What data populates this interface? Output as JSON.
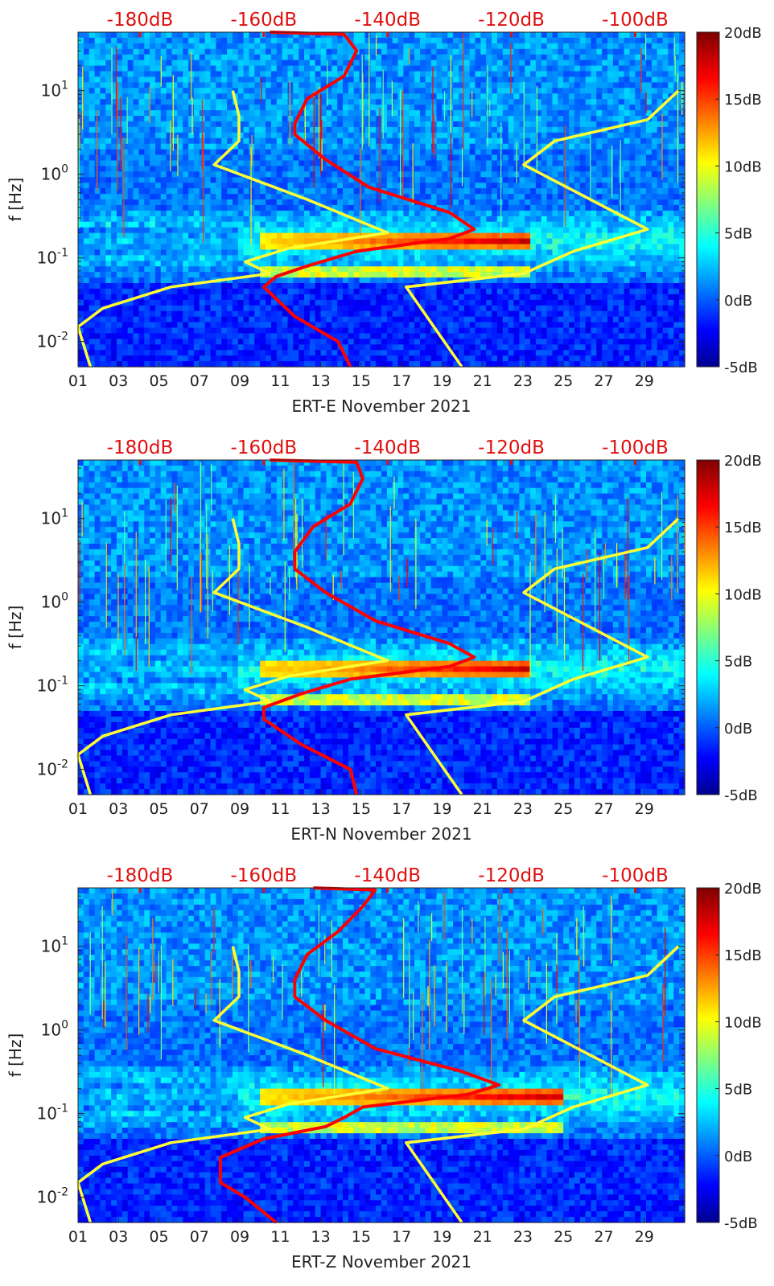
{
  "figure": {
    "panel_count": 3,
    "colormap": "jet",
    "colors": {
      "model_line": "#ff0000",
      "bound_lines": "#ffff33",
      "top_label": "#e01010",
      "axis_text": "#222222"
    },
    "top_axis_labels": [
      "-180dB",
      "-160dB",
      "-140dB",
      "-120dB",
      "-100dB"
    ]
  },
  "chart_data": [
    {
      "type": "heatmap",
      "title": "",
      "xlabel": "ERT-E November 2021",
      "ylabel": "f [Hz]",
      "x_ticks": [
        "01",
        "03",
        "05",
        "07",
        "09",
        "11",
        "13",
        "15",
        "17",
        "19",
        "21",
        "23",
        "25",
        "27",
        "29"
      ],
      "x_range": [
        1,
        31
      ],
      "y_ticks": [
        "10^-2",
        "10^-1",
        "10^0",
        "10^1"
      ],
      "y_range_hz": [
        0.005,
        50
      ],
      "top_x_labels": [
        "-180dB",
        "-160dB",
        "-140dB",
        "-120dB",
        "-100dB"
      ],
      "top_x_range_db": [
        -190,
        -92
      ],
      "colorbar": {
        "ticks": [
          "20dB",
          "15dB",
          "10dB",
          "5dB",
          "0dB",
          "-5dB"
        ],
        "range_db": [
          -5,
          20
        ]
      },
      "microseism_peak": {
        "secondary_hz": 0.16,
        "primary_hz": 0.07,
        "start_day": 10,
        "end_day": 23.5,
        "max_db": 18
      },
      "red_curve": [
        [
          -159,
          50
        ],
        [
          -147,
          47
        ],
        [
          -145,
          30
        ],
        [
          -147,
          15
        ],
        [
          -153,
          8
        ],
        [
          -155,
          4
        ],
        [
          -155,
          3
        ],
        [
          -150,
          1.5
        ],
        [
          -143,
          0.7
        ],
        [
          -130,
          0.35
        ],
        [
          -126,
          0.22
        ],
        [
          -130,
          0.17
        ],
        [
          -145,
          0.12
        ],
        [
          -153,
          0.08
        ],
        [
          -158,
          0.06
        ],
        [
          -160,
          0.045
        ],
        [
          -155,
          0.02
        ],
        [
          -148,
          0.01
        ],
        [
          -146,
          0.005
        ]
      ],
      "low_noise_model": [
        [
          -165,
          10
        ],
        [
          -164,
          5
        ],
        [
          -164,
          2.5
        ],
        [
          -168,
          1.3
        ],
        [
          -153,
          0.5
        ],
        [
          -140,
          0.2
        ],
        [
          -156,
          0.13
        ],
        [
          -161,
          0.1
        ],
        [
          -163,
          0.09
        ],
        [
          -159,
          0.065
        ],
        [
          -175,
          0.045
        ],
        [
          -186,
          0.025
        ],
        [
          -190,
          0.015
        ],
        [
          -188,
          0.005
        ]
      ],
      "high_noise_model": [
        [
          -93,
          10
        ],
        [
          -98,
          4.5
        ],
        [
          -113,
          2.5
        ],
        [
          -118,
          1.3
        ],
        [
          -98,
          0.22
        ],
        [
          -110,
          0.12
        ],
        [
          -118,
          0.065
        ],
        [
          -137,
          0.045
        ],
        [
          -128,
          0.005
        ]
      ]
    },
    {
      "type": "heatmap",
      "title": "",
      "xlabel": "ERT-N November 2021",
      "ylabel": "f [Hz]",
      "x_ticks": [
        "01",
        "03",
        "05",
        "07",
        "09",
        "11",
        "13",
        "15",
        "17",
        "19",
        "21",
        "23",
        "25",
        "27",
        "29"
      ],
      "x_range": [
        1,
        31
      ],
      "y_ticks": [
        "10^-2",
        "10^-1",
        "10^0",
        "10^1"
      ],
      "y_range_hz": [
        0.005,
        50
      ],
      "top_x_labels": [
        "-180dB",
        "-160dB",
        "-140dB",
        "-120dB",
        "-100dB"
      ],
      "top_x_range_db": [
        -190,
        -92
      ],
      "colorbar": {
        "ticks": [
          "20dB",
          "15dB",
          "10dB",
          "5dB",
          "0dB",
          "-5dB"
        ],
        "range_db": [
          -5,
          20
        ]
      },
      "microseism_peak": {
        "secondary_hz": 0.16,
        "primary_hz": 0.07,
        "start_day": 10,
        "end_day": 23.5,
        "max_db": 17
      },
      "red_curve": [
        [
          -159,
          50
        ],
        [
          -145,
          47
        ],
        [
          -144,
          30
        ],
        [
          -146,
          15
        ],
        [
          -152,
          8
        ],
        [
          -155,
          4
        ],
        [
          -155,
          2.5
        ],
        [
          -150,
          1.3
        ],
        [
          -142,
          0.6
        ],
        [
          -130,
          0.32
        ],
        [
          -126,
          0.22
        ],
        [
          -130,
          0.17
        ],
        [
          -146,
          0.12
        ],
        [
          -154,
          0.08
        ],
        [
          -160,
          0.055
        ],
        [
          -160,
          0.04
        ],
        [
          -154,
          0.02
        ],
        [
          -146,
          0.01
        ],
        [
          -145,
          0.005
        ]
      ],
      "low_noise_model": [
        [
          -165,
          10
        ],
        [
          -164,
          5
        ],
        [
          -164,
          2.5
        ],
        [
          -168,
          1.3
        ],
        [
          -153,
          0.5
        ],
        [
          -140,
          0.2
        ],
        [
          -156,
          0.13
        ],
        [
          -161,
          0.1
        ],
        [
          -163,
          0.09
        ],
        [
          -159,
          0.065
        ],
        [
          -175,
          0.045
        ],
        [
          -186,
          0.025
        ],
        [
          -190,
          0.015
        ],
        [
          -188,
          0.005
        ]
      ],
      "high_noise_model": [
        [
          -93,
          10
        ],
        [
          -98,
          4.5
        ],
        [
          -113,
          2.5
        ],
        [
          -118,
          1.3
        ],
        [
          -98,
          0.22
        ],
        [
          -110,
          0.12
        ],
        [
          -118,
          0.065
        ],
        [
          -137,
          0.045
        ],
        [
          -128,
          0.005
        ]
      ]
    },
    {
      "type": "heatmap",
      "title": "",
      "xlabel": "ERT-Z November 2021",
      "ylabel": "f [Hz]",
      "x_ticks": [
        "01",
        "03",
        "05",
        "07",
        "09",
        "11",
        "13",
        "15",
        "17",
        "19",
        "21",
        "23",
        "25",
        "27",
        "29"
      ],
      "x_range": [
        1,
        31
      ],
      "y_ticks": [
        "10^-2",
        "10^-1",
        "10^0",
        "10^1"
      ],
      "y_range_hz": [
        0.005,
        50
      ],
      "top_x_labels": [
        "-180dB",
        "-160dB",
        "-140dB",
        "-120dB",
        "-100dB"
      ],
      "top_x_range_db": [
        -190,
        -92
      ],
      "colorbar": {
        "ticks": [
          "20dB",
          "15dB",
          "10dB",
          "5dB",
          "0dB",
          "-5dB"
        ],
        "range_db": [
          -5,
          20
        ]
      },
      "microseism_peak": {
        "secondary_hz": 0.16,
        "primary_hz": 0.07,
        "start_day": 10,
        "end_day": 25,
        "max_db": 17
      },
      "red_curve": [
        [
          -152,
          50
        ],
        [
          -142,
          47
        ],
        [
          -144,
          30
        ],
        [
          -148,
          15
        ],
        [
          -153,
          8
        ],
        [
          -155,
          4
        ],
        [
          -155,
          2.5
        ],
        [
          -150,
          1.3
        ],
        [
          -142,
          0.6
        ],
        [
          -128,
          0.32
        ],
        [
          -122,
          0.22
        ],
        [
          -127,
          0.17
        ],
        [
          -144,
          0.12
        ],
        [
          -147,
          0.09
        ],
        [
          -150,
          0.07
        ],
        [
          -160,
          0.05
        ],
        [
          -167,
          0.03
        ],
        [
          -167,
          0.015
        ],
        [
          -163,
          0.01
        ],
        [
          -158,
          0.005
        ]
      ],
      "low_noise_model": [
        [
          -165,
          10
        ],
        [
          -164,
          5
        ],
        [
          -164,
          2.5
        ],
        [
          -168,
          1.3
        ],
        [
          -153,
          0.5
        ],
        [
          -140,
          0.2
        ],
        [
          -156,
          0.13
        ],
        [
          -161,
          0.1
        ],
        [
          -163,
          0.09
        ],
        [
          -159,
          0.065
        ],
        [
          -175,
          0.045
        ],
        [
          -186,
          0.025
        ],
        [
          -190,
          0.015
        ],
        [
          -188,
          0.005
        ]
      ],
      "high_noise_model": [
        [
          -93,
          10
        ],
        [
          -98,
          4.5
        ],
        [
          -113,
          2.5
        ],
        [
          -118,
          1.3
        ],
        [
          -98,
          0.22
        ],
        [
          -110,
          0.12
        ],
        [
          -118,
          0.065
        ],
        [
          -137,
          0.045
        ],
        [
          -128,
          0.005
        ]
      ]
    }
  ]
}
